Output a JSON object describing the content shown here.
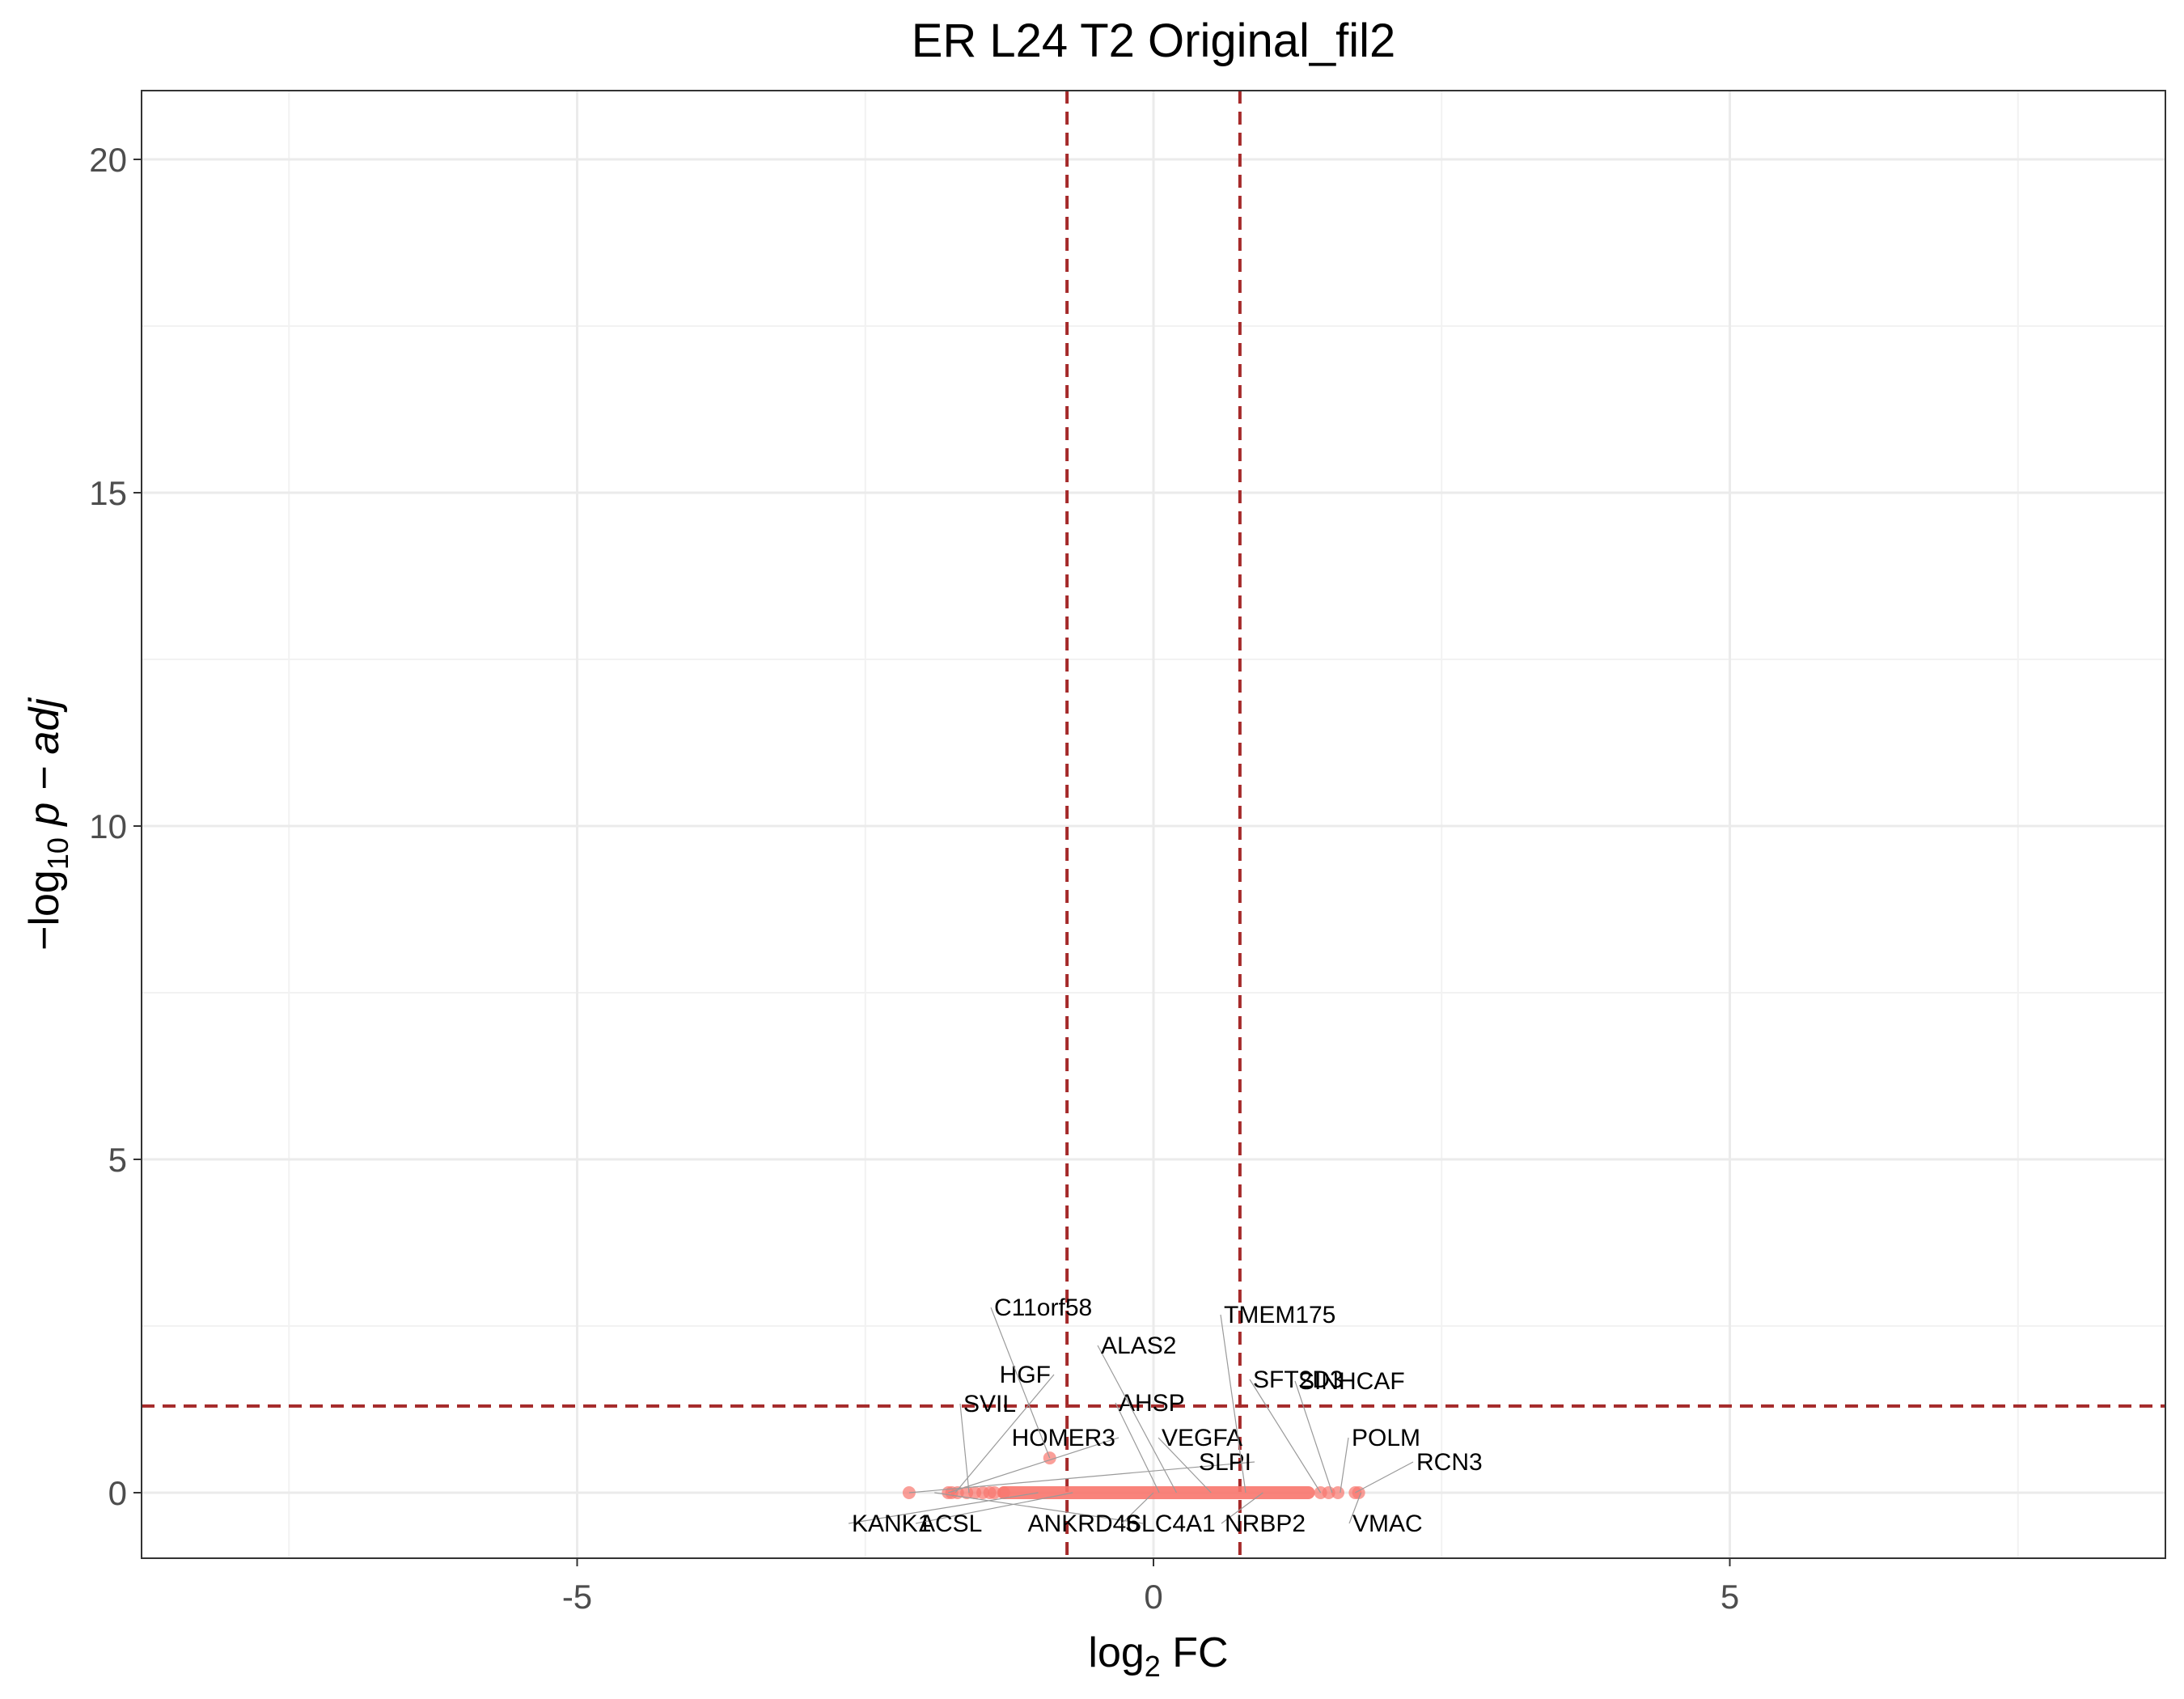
{
  "chart_data": {
    "type": "scatter",
    "title": "ER L24 T2 Original_fil2",
    "xlabel": "log2 FC",
    "ylabel": "−log10 p − adj",
    "xlim": [
      -8.85,
      8.85
    ],
    "ylim": [
      -1,
      21
    ],
    "x_ticks": [
      -5,
      0,
      5
    ],
    "y_ticks": [
      0,
      5,
      10,
      15,
      20
    ],
    "x_tick_labels": [
      "-5",
      "0",
      "5"
    ],
    "y_tick_labels": [
      "0",
      "5",
      "10",
      "15",
      "20"
    ],
    "grid": true,
    "thresholds": {
      "log2fc": [
        -0.75,
        0.75
      ],
      "neg_log10_padj": 1.3
    },
    "point_color": "#F8766D",
    "threshold_color": "#A52A2A",
    "points": {
      "x": [
        -2.12,
        -1.78,
        -1.75,
        -1.7,
        -1.62,
        -1.55,
        -1.48,
        -1.42,
        -1.38,
        -1.3,
        -0.9,
        1.45,
        1.52,
        1.6,
        1.75,
        1.78
      ],
      "y": [
        0,
        0,
        0,
        0,
        0,
        0,
        0,
        0,
        0,
        0,
        0.52,
        0,
        0,
        0,
        0,
        0
      ]
    },
    "dense_band": {
      "x_range": [
        -1.35,
        1.4
      ],
      "y": 0
    },
    "labeled_genes": [
      {
        "name": "SLPI",
        "x": -2.12,
        "y": 0
      },
      {
        "name": "ANKRD46",
        "x": -1.9,
        "y": 0
      },
      {
        "name": "HOMER3",
        "x": -1.78,
        "y": 0
      },
      {
        "name": "HGF",
        "x": -1.72,
        "y": 0
      },
      {
        "name": "SVIL",
        "x": -1.6,
        "y": 0
      },
      {
        "name": "KANK1",
        "x": -1.0,
        "y": 0
      },
      {
        "name": "ACSL",
        "x": -0.7,
        "y": 0
      },
      {
        "name": "C11orf58",
        "x": -0.9,
        "y": 0.52
      },
      {
        "name": "AHSP",
        "x": 0.05,
        "y": 0
      },
      {
        "name": "SLC4A1",
        "x": 0.0,
        "y": 0
      },
      {
        "name": "ALAS2",
        "x": 0.2,
        "y": 0
      },
      {
        "name": "VEGFA",
        "x": 0.5,
        "y": 0
      },
      {
        "name": "TMEM175",
        "x": 0.8,
        "y": 0
      },
      {
        "name": "NRBP2",
        "x": 0.95,
        "y": 0
      },
      {
        "name": "SFT2D3",
        "x": 1.45,
        "y": 0
      },
      {
        "name": "SINHCAF",
        "x": 1.55,
        "y": 0
      },
      {
        "name": "POLM",
        "x": 1.62,
        "y": 0
      },
      {
        "name": "RCN3",
        "x": 1.75,
        "y": 0
      },
      {
        "name": "VMAC",
        "x": 1.8,
        "y": 0
      }
    ]
  }
}
